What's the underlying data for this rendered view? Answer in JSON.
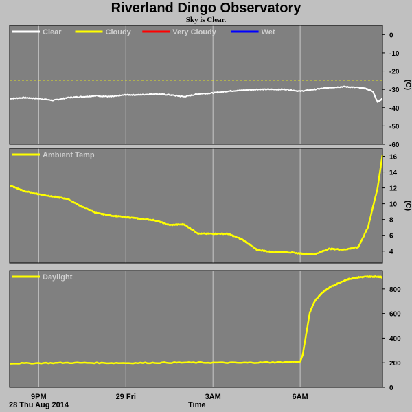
{
  "page": {
    "title": "Riverland Dingo Observatory",
    "subtitle": "Sky is Clear."
  },
  "chart_data": [
    {
      "type": "line",
      "ylabel": "(C)",
      "ylim": [
        -60,
        5
      ],
      "yticks": [
        0,
        -10,
        -20,
        -30,
        -40,
        -50,
        -60
      ],
      "xlim": [
        "2014-08-28T20:00",
        "2014-08-29T08:50"
      ],
      "legend": [
        {
          "name": "Clear",
          "color": "#ffffff"
        },
        {
          "name": "Cloudy",
          "color": "#ffff00"
        },
        {
          "name": "Very Cloudy",
          "color": "#ff0000"
        },
        {
          "name": "Wet",
          "color": "#0000ff"
        }
      ],
      "thresholds": [
        {
          "name": "Very Cloudy",
          "value": -20,
          "color": "#ff0000"
        },
        {
          "name": "Cloudy",
          "value": -25,
          "color": "#ffff00"
        }
      ],
      "series": [
        {
          "name": "Clear",
          "color": "#ffffff",
          "x": [
            "2014-08-28T20:00",
            "2014-08-28T20:30",
            "2014-08-28T21:00",
            "2014-08-28T21:30",
            "2014-08-28T22:00",
            "2014-08-28T22:30",
            "2014-08-28T23:00",
            "2014-08-28T23:30",
            "2014-08-29T00:00",
            "2014-08-29T00:30",
            "2014-08-29T01:00",
            "2014-08-29T01:30",
            "2014-08-29T02:00",
            "2014-08-29T02:30",
            "2014-08-29T03:00",
            "2014-08-29T03:30",
            "2014-08-29T04:00",
            "2014-08-29T04:30",
            "2014-08-29T05:00",
            "2014-08-29T05:30",
            "2014-08-29T06:00",
            "2014-08-29T06:30",
            "2014-08-29T07:00",
            "2014-08-29T07:30",
            "2014-08-29T08:00",
            "2014-08-29T08:15",
            "2014-08-29T08:30",
            "2014-08-29T08:40",
            "2014-08-29T08:50"
          ],
          "y": [
            -35,
            -34.5,
            -35,
            -36,
            -34.5,
            -34,
            -33.5,
            -34,
            -33,
            -33,
            -32.5,
            -33,
            -34,
            -32.5,
            -32,
            -31,
            -30.5,
            -30,
            -30,
            -30,
            -31,
            -30,
            -29,
            -28.5,
            -29,
            -29.5,
            -31,
            -37,
            -35
          ]
        }
      ]
    },
    {
      "type": "line",
      "ylabel": "(C)",
      "ylim": [
        2.5,
        17
      ],
      "yticks": [
        16,
        14,
        12,
        10,
        8,
        6,
        4
      ],
      "xlim": [
        "2014-08-28T20:00",
        "2014-08-29T08:50"
      ],
      "legend": [
        {
          "name": "Ambient Temp",
          "color": "#ffff00"
        }
      ],
      "series": [
        {
          "name": "Ambient Temp",
          "color": "#ffff00",
          "x": [
            "2014-08-28T20:00",
            "2014-08-28T20:30",
            "2014-08-28T21:00",
            "2014-08-28T21:30",
            "2014-08-28T22:00",
            "2014-08-28T22:30",
            "2014-08-28T23:00",
            "2014-08-28T23:30",
            "2014-08-29T00:00",
            "2014-08-29T00:30",
            "2014-08-29T01:00",
            "2014-08-29T01:30",
            "2014-08-29T02:00",
            "2014-08-29T02:30",
            "2014-08-29T03:00",
            "2014-08-29T03:30",
            "2014-08-29T04:00",
            "2014-08-29T04:30",
            "2014-08-29T05:00",
            "2014-08-29T05:30",
            "2014-08-29T06:00",
            "2014-08-29T06:30",
            "2014-08-29T07:00",
            "2014-08-29T07:30",
            "2014-08-29T08:00",
            "2014-08-29T08:20",
            "2014-08-29T08:40",
            "2014-08-29T08:50"
          ],
          "y": [
            12.3,
            11.6,
            11.2,
            10.9,
            10.6,
            9.6,
            8.8,
            8.5,
            8.3,
            8.1,
            7.9,
            7.3,
            7.4,
            6.2,
            6.2,
            6.2,
            5.5,
            4.2,
            3.9,
            3.9,
            3.7,
            3.6,
            4.3,
            4.2,
            4.5,
            7.0,
            12.0,
            16.2
          ]
        }
      ]
    },
    {
      "type": "line",
      "ylabel": "",
      "ylim": [
        0,
        950
      ],
      "yticks": [
        800,
        600,
        400,
        200,
        0
      ],
      "xlim": [
        "2014-08-28T20:00",
        "2014-08-29T08:50"
      ],
      "legend": [
        {
          "name": "Daylight",
          "color": "#ffff00"
        }
      ],
      "series": [
        {
          "name": "Daylight",
          "color": "#ffff00",
          "x": [
            "2014-08-28T20:00",
            "2014-08-28T22:00",
            "2014-08-29T00:00",
            "2014-08-29T02:00",
            "2014-08-29T04:00",
            "2014-08-29T05:30",
            "2014-08-29T06:00",
            "2014-08-29T06:05",
            "2014-08-29T06:12",
            "2014-08-29T06:20",
            "2014-08-29T06:30",
            "2014-08-29T06:45",
            "2014-08-29T07:00",
            "2014-08-29T07:20",
            "2014-08-29T07:40",
            "2014-08-29T08:00",
            "2014-08-29T08:20",
            "2014-08-29T08:40",
            "2014-08-29T08:50"
          ],
          "y": [
            195,
            200,
            198,
            202,
            200,
            205,
            210,
            260,
            420,
            610,
            700,
            770,
            810,
            850,
            880,
            895,
            900,
            900,
            895
          ]
        }
      ]
    }
  ],
  "x_axis": {
    "label": "Time",
    "date_label": "28 Thu Aug 2014",
    "ticks": [
      {
        "label": "9PM",
        "time": "2014-08-28T21:00"
      },
      {
        "label": "29 Fri",
        "time": "2014-08-29T00:00"
      },
      {
        "label": "3AM",
        "time": "2014-08-29T03:00"
      },
      {
        "label": "6AM",
        "time": "2014-08-29T06:00"
      }
    ]
  },
  "colors": {
    "background": "#c0c0c0",
    "plot_background": "#808080",
    "grid": "#c8c8c8"
  }
}
